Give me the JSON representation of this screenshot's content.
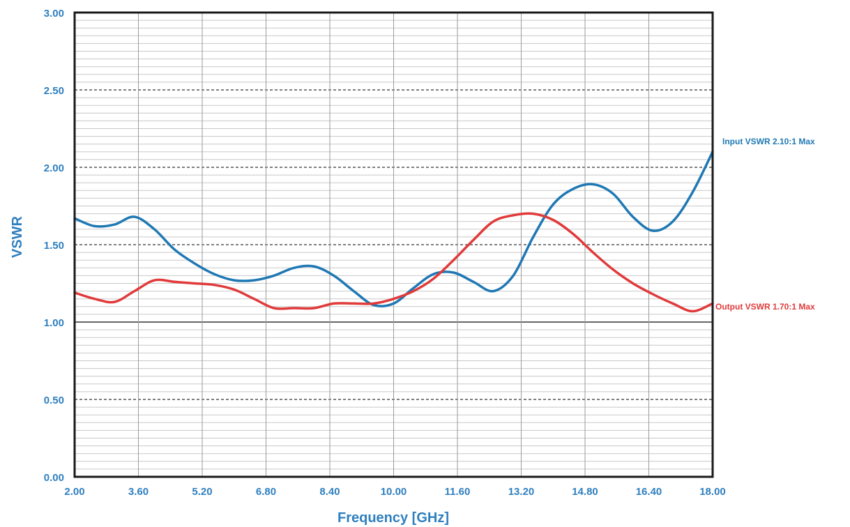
{
  "chart_data": {
    "type": "line",
    "xlabel": "Frequency [GHz]",
    "ylabel": "VSWR",
    "xlim": [
      2.0,
      18.0
    ],
    "ylim": [
      0.0,
      3.0
    ],
    "x_ticks": [
      "2.00",
      "3.60",
      "5.20",
      "6.80",
      "8.40",
      "10.00",
      "11.60",
      "13.20",
      "14.80",
      "16.40",
      "18.00"
    ],
    "y_ticks": [
      "0.00",
      "0.50",
      "1.00",
      "1.50",
      "2.00",
      "2.50",
      "3.00"
    ],
    "grid": true,
    "series": [
      {
        "name": "Input VSWR 2.10:1 Max",
        "color": "#1f78b4",
        "x": [
          2.0,
          2.5,
          3.0,
          3.5,
          4.0,
          4.5,
          5.0,
          5.5,
          6.0,
          6.5,
          7.0,
          7.5,
          8.0,
          8.5,
          9.0,
          9.5,
          10.0,
          10.5,
          11.0,
          11.5,
          12.0,
          12.5,
          13.0,
          13.5,
          14.0,
          14.5,
          15.0,
          15.5,
          16.0,
          16.5,
          17.0,
          17.5,
          18.0
        ],
        "y": [
          1.67,
          1.62,
          1.63,
          1.68,
          1.6,
          1.47,
          1.38,
          1.31,
          1.27,
          1.27,
          1.3,
          1.35,
          1.36,
          1.3,
          1.2,
          1.11,
          1.12,
          1.22,
          1.31,
          1.32,
          1.26,
          1.2,
          1.3,
          1.55,
          1.76,
          1.86,
          1.89,
          1.83,
          1.68,
          1.59,
          1.65,
          1.84,
          2.1
        ]
      },
      {
        "name": "Output VSWR 1.70:1 Max",
        "color": "#e03a3a",
        "x": [
          2.0,
          2.5,
          3.0,
          3.5,
          4.0,
          4.5,
          5.0,
          5.5,
          6.0,
          6.5,
          7.0,
          7.5,
          8.0,
          8.5,
          9.0,
          9.5,
          10.0,
          10.5,
          11.0,
          11.5,
          12.0,
          12.5,
          13.0,
          13.5,
          14.0,
          14.5,
          15.0,
          15.5,
          16.0,
          16.5,
          17.0,
          17.5,
          18.0
        ],
        "y": [
          1.19,
          1.15,
          1.13,
          1.2,
          1.27,
          1.26,
          1.25,
          1.24,
          1.21,
          1.15,
          1.09,
          1.09,
          1.09,
          1.12,
          1.12,
          1.12,
          1.15,
          1.2,
          1.28,
          1.4,
          1.53,
          1.65,
          1.69,
          1.7,
          1.66,
          1.57,
          1.45,
          1.34,
          1.25,
          1.18,
          1.12,
          1.07,
          1.12
        ]
      }
    ]
  }
}
